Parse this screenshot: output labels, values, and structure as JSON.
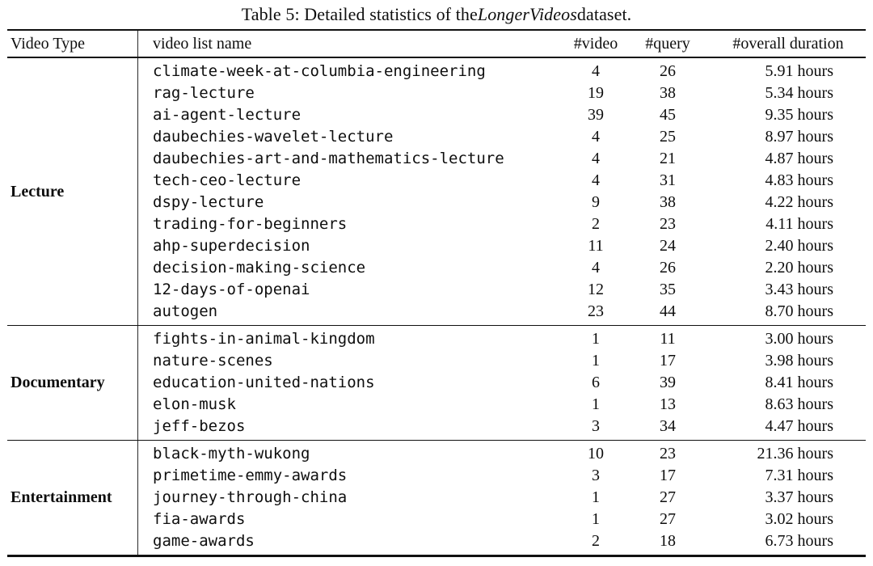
{
  "caption": {
    "prefix": "Table 5: Detailed statistics of the ",
    "dataset_name": "LongerVideos",
    "suffix": " dataset."
  },
  "header": {
    "video_type": "Video Type",
    "video_list_name": "video list name",
    "num_video": "#video",
    "num_query": "#query",
    "overall_duration": "#overall duration"
  },
  "sections": [
    {
      "type": "Lecture",
      "rows": [
        {
          "name": "climate-week-at-columbia-engineering",
          "videos": "4",
          "queries": "26",
          "duration": "5.91 hours"
        },
        {
          "name": "rag-lecture",
          "videos": "19",
          "queries": "38",
          "duration": "5.34 hours"
        },
        {
          "name": "ai-agent-lecture",
          "videos": "39",
          "queries": "45",
          "duration": "9.35 hours"
        },
        {
          "name": "daubechies-wavelet-lecture",
          "videos": "4",
          "queries": "25",
          "duration": "8.97 hours"
        },
        {
          "name": "daubechies-art-and-mathematics-lecture",
          "videos": "4",
          "queries": "21",
          "duration": "4.87 hours"
        },
        {
          "name": "tech-ceo-lecture",
          "videos": "4",
          "queries": "31",
          "duration": "4.83 hours"
        },
        {
          "name": "dspy-lecture",
          "videos": "9",
          "queries": "38",
          "duration": "4.22 hours"
        },
        {
          "name": "trading-for-beginners",
          "videos": "2",
          "queries": "23",
          "duration": "4.11 hours"
        },
        {
          "name": "ahp-superdecision",
          "videos": "11",
          "queries": "24",
          "duration": "2.40 hours"
        },
        {
          "name": "decision-making-science",
          "videos": "4",
          "queries": "26",
          "duration": "2.20 hours"
        },
        {
          "name": "12-days-of-openai",
          "videos": "12",
          "queries": "35",
          "duration": "3.43 hours"
        },
        {
          "name": "autogen",
          "videos": "23",
          "queries": "44",
          "duration": "8.70 hours"
        }
      ]
    },
    {
      "type": "Documentary",
      "rows": [
        {
          "name": "fights-in-animal-kingdom",
          "videos": "1",
          "queries": "11",
          "duration": "3.00 hours"
        },
        {
          "name": "nature-scenes",
          "videos": "1",
          "queries": "17",
          "duration": "3.98 hours"
        },
        {
          "name": "education-united-nations",
          "videos": "6",
          "queries": "39",
          "duration": "8.41 hours"
        },
        {
          "name": "elon-musk",
          "videos": "1",
          "queries": "13",
          "duration": "8.63 hours"
        },
        {
          "name": "jeff-bezos",
          "videos": "3",
          "queries": "34",
          "duration": "4.47 hours"
        }
      ]
    },
    {
      "type": "Entertainment",
      "rows": [
        {
          "name": "black-myth-wukong",
          "videos": "10",
          "queries": "23",
          "duration": "21.36 hours"
        },
        {
          "name": "primetime-emmy-awards",
          "videos": "3",
          "queries": "17",
          "duration": "7.31 hours"
        },
        {
          "name": "journey-through-china",
          "videos": "1",
          "queries": "27",
          "duration": "3.37 hours"
        },
        {
          "name": "fia-awards",
          "videos": "1",
          "queries": "27",
          "duration": "3.02 hours"
        },
        {
          "name": "game-awards",
          "videos": "2",
          "queries": "18",
          "duration": "6.73 hours"
        }
      ]
    }
  ]
}
